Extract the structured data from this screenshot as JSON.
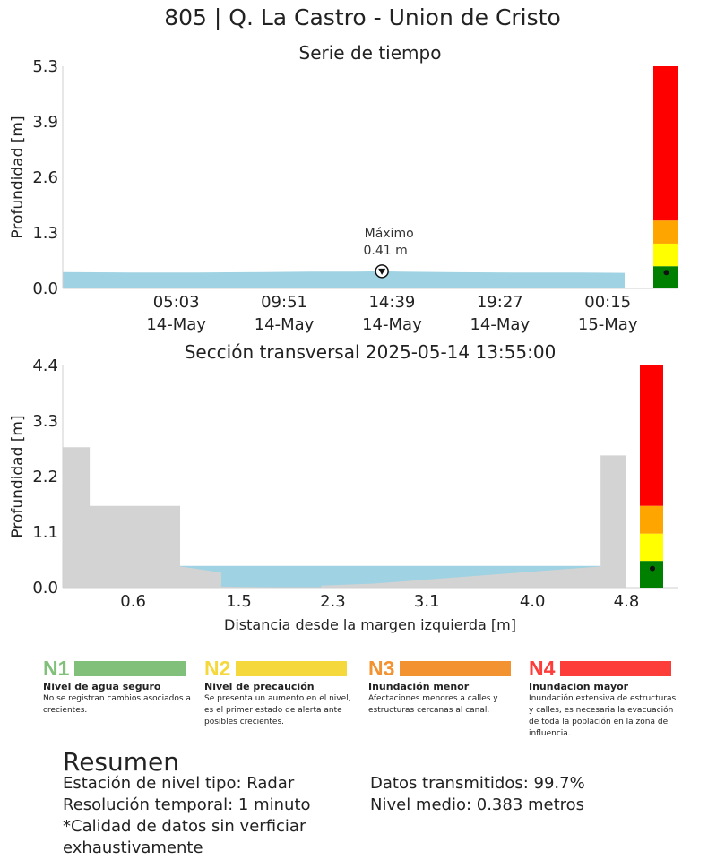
{
  "page_title": "805 | Q. La Castro - Union de Cristo",
  "chart_data": [
    {
      "type": "area",
      "title": "Serie de tiempo",
      "ylabel": "Profundidad [m]",
      "xlabel": "",
      "ylim": [
        0,
        5.3
      ],
      "yticks": [
        "0.0",
        "1.3",
        "2.6",
        "3.9",
        "5.3"
      ],
      "xticks": [
        {
          "time": "05:03",
          "date": "14-May"
        },
        {
          "time": "09:51",
          "date": "14-May"
        },
        {
          "time": "14:39",
          "date": "14-May"
        },
        {
          "time": "19:27",
          "date": "14-May"
        },
        {
          "time": "00:15",
          "date": "15-May"
        }
      ],
      "x_range_hours": [
        0.0,
        25.0
      ],
      "xtick_hours": [
        5.05,
        9.85,
        14.65,
        19.45,
        24.25
      ],
      "series": [
        {
          "x_hours": [
            0.0,
            3.0,
            6.0,
            9.0,
            11.0,
            13.0,
            14.2,
            15.0,
            17.0,
            20.0,
            23.0,
            25.0
          ],
          "values": [
            0.39,
            0.38,
            0.38,
            0.39,
            0.4,
            0.4,
            0.41,
            0.4,
            0.39,
            0.38,
            0.38,
            0.37
          ]
        }
      ],
      "max_annotation": {
        "label": "Máximo",
        "value_text": "0.41 m",
        "x_hours": 14.2,
        "value": 0.41
      },
      "level_bar": {
        "segments": [
          0,
          0.53,
          1.07,
          1.62,
          5.3
        ],
        "current": 0.38
      },
      "grid": false
    },
    {
      "type": "area",
      "title": "Sección transversal 2025-05-14 13:55:00",
      "ylabel": "Profundidad [m]",
      "xlabel": "Distancia desde la margen izquierda [m]",
      "ylim": [
        0,
        4.4
      ],
      "xlim": [
        0,
        4.8
      ],
      "yticks": [
        "0.0",
        "1.1",
        "2.2",
        "3.3",
        "4.4"
      ],
      "xticks": [
        "0.6",
        "1.5",
        "2.3",
        "3.1",
        "4.0",
        "4.8"
      ],
      "xtick_values": [
        0.6,
        1.5,
        2.3,
        3.1,
        4.0,
        4.8
      ],
      "terrain": {
        "x": [
          0.0,
          0.0,
          0.23,
          0.23,
          1.0,
          1.0,
          1.35,
          1.35,
          2.2,
          2.2,
          2.65,
          4.58,
          4.58,
          4.8,
          4.8
        ],
        "y": [
          0.0,
          2.78,
          2.78,
          1.62,
          1.62,
          0.42,
          0.3,
          0.02,
          0.0,
          0.04,
          0.08,
          0.42,
          2.62,
          2.62,
          0.0
        ]
      },
      "water": {
        "surface": 0.43,
        "x_start": 1.0,
        "x_end": 4.58
      },
      "level_bar": {
        "segments": [
          0,
          0.53,
          1.07,
          1.62,
          4.4
        ],
        "current": 0.38
      },
      "grid": false
    }
  ],
  "colors": {
    "water": "#9fd2e2",
    "terrain": "#d3d3d3",
    "level_green": "#008000",
    "level_yellow": "#ffff00",
    "level_orange": "#ffa500",
    "level_red": "#ff0000",
    "n1": "#81c07a",
    "n2": "#f5d83c",
    "n3": "#f39230",
    "n4": "#fc3d3a"
  },
  "levels": [
    {
      "code": "N1",
      "name": "Nivel de agua seguro",
      "desc": "No se registran cambios asociados a crecientes."
    },
    {
      "code": "N2",
      "name": "Nivel de precaución",
      "desc": "Se presenta un aumento en el nivel, es el primer estado de alerta ante posibles crecientes."
    },
    {
      "code": "N3",
      "name": "Inundación menor",
      "desc": "Afectaciones menores a calles y estructuras cercanas al canal."
    },
    {
      "code": "N4",
      "name": "Inundacion mayor",
      "desc": "Inundación extensiva de estructuras y calles, es necesaria la evacuación de toda la población en la zona de influencia."
    }
  ],
  "summary": {
    "heading": "Resumen",
    "left": [
      "Estación de nivel tipo: Radar",
      "Resolución temporal: 1 minuto",
      "*Calidad de datos sin verficiar exhaustivamente"
    ],
    "right": [
      "Datos transmitidos: 99.7%",
      "Nivel medio: 0.383 metros"
    ]
  }
}
